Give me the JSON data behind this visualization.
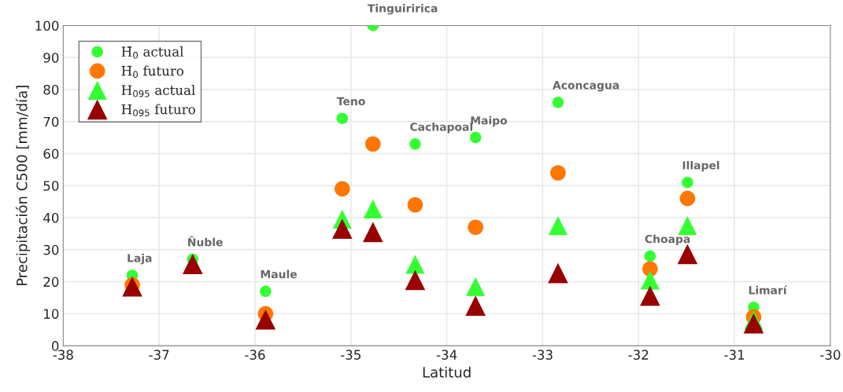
{
  "chart_data": {
    "type": "scatter",
    "xlabel": "Latitud",
    "ylabel": "Precipitación C500 [mm/día]",
    "x": [
      -37.28,
      -36.65,
      -35.89,
      -35.09,
      -34.77,
      -34.33,
      -33.7,
      -32.84,
      -31.88,
      -31.49,
      -30.8
    ],
    "series": [
      {
        "name": "H̄$_{0}$ actual",
        "color": "#33ff33",
        "marker": "circle",
        "values": [
          22,
          27,
          17,
          71,
          100,
          63,
          65,
          76,
          28,
          51,
          12
        ]
      },
      {
        "name": "H̄$_{0}$ futuro",
        "color": "#ff7700",
        "marker": "circle",
        "values": [
          19,
          null,
          10,
          49,
          63,
          44,
          37,
          54,
          24,
          46,
          9
        ]
      },
      {
        "name": "H$_{095}$ actual",
        "color": "#33ff33",
        "marker": "triangle",
        "values": [
          null,
          null,
          null,
          39.5,
          42.7,
          25.4,
          18.5,
          37.5,
          20.5,
          37.5,
          8
        ]
      },
      {
        "name": "H$_{095}$ futuro",
        "color": "#990000",
        "marker": "triangle",
        "values": [
          18.5,
          25.5,
          8.2,
          36.5,
          35.5,
          20.5,
          12.5,
          22.7,
          15.6,
          28.6,
          7
        ]
      }
    ],
    "annotations": [
      {
        "text": "Laja",
        "x": -37.28,
        "y": 22
      },
      {
        "text": "Ñuble",
        "x": -36.65,
        "y": 27
      },
      {
        "text": "Maule",
        "x": -35.89,
        "y": 17
      },
      {
        "text": "Teno",
        "x": -35.09,
        "y": 71
      },
      {
        "text": "Tinguiririca",
        "x": -34.77,
        "y": 100
      },
      {
        "text": "Cachapoal",
        "x": -34.33,
        "y": 63
      },
      {
        "text": "Maipo",
        "x": -33.7,
        "y": 65
      },
      {
        "text": "Aconcagua",
        "x": -32.84,
        "y": 76
      },
      {
        "text": "Choapa",
        "x": -31.88,
        "y": 28
      },
      {
        "text": "Illapel",
        "x": -31.49,
        "y": 51
      },
      {
        "text": "Limarí",
        "x": -30.8,
        "y": 12
      }
    ],
    "xlim": [
      -38,
      -30
    ],
    "xticks": [
      -38,
      -37,
      -36,
      -35,
      -34,
      -33,
      -32,
      -31,
      -30
    ],
    "ylim": [
      0,
      100
    ],
    "yticks": [
      0,
      10,
      20,
      30,
      40,
      50,
      60,
      70,
      80,
      90,
      100
    ],
    "grid": true,
    "legend": "top left"
  }
}
